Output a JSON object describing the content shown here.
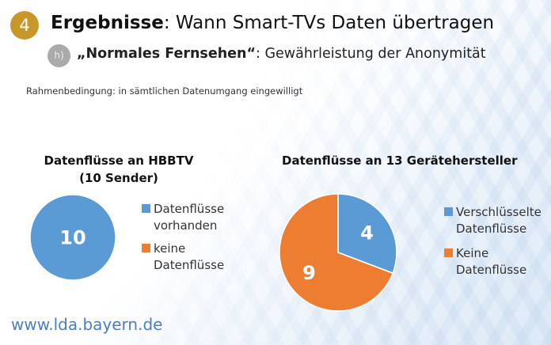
{
  "header": {
    "number": "4",
    "title_bold": "Ergebnisse",
    "title_rest": ": Wann Smart-TVs Daten übertragen",
    "sub_badge": "h)",
    "subtitle_bold": "„Normales Fernsehen“",
    "subtitle_rest": ": Gewährleistung der Anonymität"
  },
  "condition": "Rahmenbedingung:  in sämtlichen Datenumgang eingewilligt",
  "footer": {
    "url": "www.lda.bayern.de"
  },
  "colors": {
    "blue": "#5b9bd5",
    "orange": "#ed7d31",
    "badge": "#c9962a"
  },
  "chart_data": [
    {
      "type": "pie",
      "title": "Datenflüsse an HBBTV (10 Sender)",
      "title_line1": "Datenflüsse an HBBTV",
      "title_line2": "(10 Sender)",
      "legend": "right",
      "slices": [
        {
          "label": "Datenflüsse vorhanden",
          "label_line1": "Datenflüsse",
          "label_line2": "vorhanden",
          "value": 10,
          "color": "#5b9bd5"
        },
        {
          "label": "keine Datenflüsse",
          "label_line1": "keine",
          "label_line2": "Datenflüsse",
          "value": 0,
          "color": "#ed7d31"
        }
      ]
    },
    {
      "type": "pie",
      "title": "Datenflüsse an 13 Gerätehersteller",
      "legend": "right",
      "slices": [
        {
          "label": "Verschlüsselte Datenflüsse",
          "label_line1": "Verschlüsselte",
          "label_line2": "Datenflüsse",
          "value": 4,
          "color": "#5b9bd5"
        },
        {
          "label": "Keine Datenflüsse",
          "label_line1": "Keine",
          "label_line2": "Datenflüsse",
          "value": 9,
          "color": "#ed7d31"
        }
      ]
    }
  ]
}
